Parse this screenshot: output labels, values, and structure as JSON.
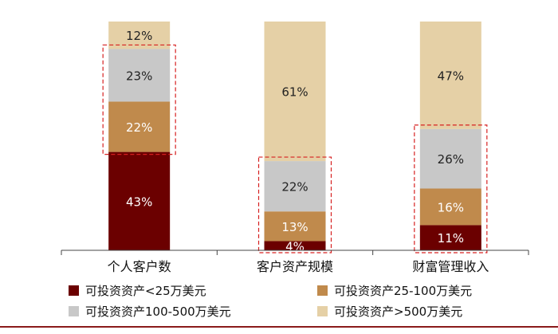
{
  "chart_data": {
    "type": "bar",
    "stacked": true,
    "percent": true,
    "categories": [
      "个人客户数",
      "客户资产规模",
      "财富管理收入"
    ],
    "series": [
      {
        "name": "可投资资产<25万美元",
        "values": [
          43,
          4,
          11
        ],
        "color": "#6b0000",
        "label_color": "#ffffff"
      },
      {
        "name": "可投资资产25-100万美元",
        "values": [
          22,
          13,
          16
        ],
        "color": "#c08a4c",
        "label_color": "#ffffff"
      },
      {
        "name": "可投资资产100-500万美元",
        "values": [
          23,
          22,
          26
        ],
        "color": "#c8c8c8",
        "label_color": "#222222"
      },
      {
        "name": "可投资资产>500万美元",
        "values": [
          12,
          61,
          47
        ],
        "color": "#e5d0a6",
        "label_color": "#222222"
      }
    ],
    "highlight": [
      {
        "category": 0,
        "series": [
          1,
          2
        ]
      },
      {
        "category": 1,
        "series": [
          0,
          1,
          2
        ]
      },
      {
        "category": 2,
        "series": [
          0,
          1,
          2
        ]
      }
    ],
    "ylim": [
      0,
      100
    ],
    "grid": false,
    "legend_position": "bottom",
    "title": "",
    "xlabel": "",
    "ylabel": ""
  }
}
